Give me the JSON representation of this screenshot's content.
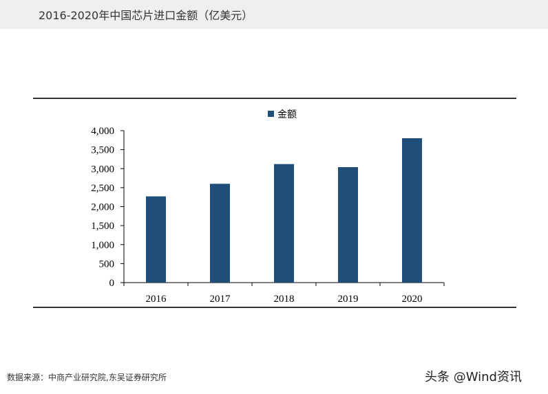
{
  "header": {
    "title": "2016-2020年中国芯片进口金额（亿美元）"
  },
  "footer": {
    "source": "数据来源：中商产业研究院,东吴证券研究所",
    "watermark": "头条 @Wind资讯"
  },
  "chart_data": {
    "type": "bar",
    "title": "",
    "xlabel": "",
    "ylabel": "",
    "categories": [
      "2016",
      "2017",
      "2018",
      "2019",
      "2020"
    ],
    "series": [
      {
        "name": "金额",
        "values": [
          2270,
          2601,
          3120,
          3040,
          3800
        ],
        "color": "#1f4e79"
      }
    ],
    "ylim": [
      0,
      4000
    ],
    "yticks": [
      0,
      500,
      1000,
      1500,
      2000,
      2500,
      3000,
      3500,
      4000
    ],
    "ytick_labels": [
      "0",
      "500",
      "1,000",
      "1,500",
      "2,000",
      "2,500",
      "3,000",
      "3,500",
      "4,000"
    ],
    "grid": false,
    "legend_position": "top-center"
  }
}
